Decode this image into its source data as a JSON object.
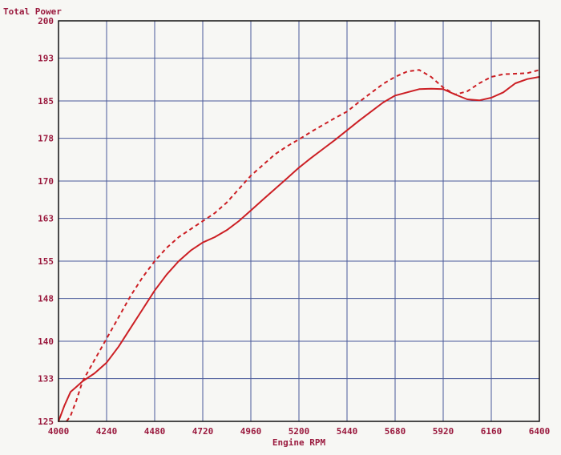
{
  "chart_data": {
    "type": "line",
    "title": "",
    "xlabel": "Engine RPM",
    "ylabel": "Total Power",
    "xlim": [
      4000,
      6400
    ],
    "ylim": [
      125,
      200
    ],
    "x_ticks": [
      4000,
      4240,
      4480,
      4720,
      4960,
      5200,
      5440,
      5680,
      5920,
      6160,
      6400
    ],
    "y_ticks": [
      125,
      133,
      140,
      148,
      155,
      163,
      170,
      178,
      185,
      193,
      200
    ],
    "x_tick_labels": [
      "4000",
      "4240",
      "4480",
      "4720",
      "4960",
      "5200",
      "5440",
      "5680",
      "5920",
      "6160",
      "6400"
    ],
    "y_tick_labels": [
      "125",
      "133",
      "140",
      "148",
      "155",
      "163",
      "170",
      "178",
      "185",
      "193",
      "200"
    ],
    "grid": true,
    "colors": {
      "line": "#cc1f24",
      "grid": "#4a5a9a",
      "text": "#9a1a3e",
      "frame": "#111111"
    },
    "series": [
      {
        "style": "solid",
        "x": [
          4000,
          4030,
          4060,
          4090,
          4120,
          4180,
          4240,
          4300,
          4360,
          4420,
          4480,
          4540,
          4600,
          4660,
          4720,
          4780,
          4840,
          4900,
          4960,
          5020,
          5080,
          5140,
          5200,
          5260,
          5320,
          5380,
          5440,
          5500,
          5560,
          5620,
          5680,
          5740,
          5800,
          5860,
          5920,
          5980,
          6040,
          6100,
          6160,
          6220,
          6280,
          6340,
          6400
        ],
        "values": [
          125,
          128,
          130.5,
          131.5,
          132.5,
          134,
          136,
          139,
          142.5,
          146,
          149.5,
          152.5,
          155,
          157,
          158.5,
          159.5,
          160.8,
          162.5,
          164.5,
          166.5,
          168.5,
          170.5,
          172.5,
          174.3,
          176,
          177.7,
          179.5,
          181.3,
          183,
          184.7,
          186,
          186.6,
          187.2,
          187.3,
          187.2,
          186.2,
          185.3,
          185.1,
          185.6,
          186.6,
          188.3,
          189.1,
          189.5
        ]
      },
      {
        "style": "dashed",
        "x": [
          4040,
          4060,
          4090,
          4120,
          4180,
          4240,
          4300,
          4360,
          4420,
          4480,
          4540,
          4600,
          4660,
          4720,
          4780,
          4840,
          4900,
          4960,
          5020,
          5080,
          5140,
          5200,
          5260,
          5320,
          5380,
          5440,
          5500,
          5560,
          5620,
          5680,
          5740,
          5800,
          5860,
          5920,
          5980,
          6040,
          6100,
          6160,
          6220,
          6280,
          6340,
          6400
        ],
        "values": [
          125,
          126,
          129,
          132.5,
          136.5,
          140.5,
          144.5,
          148.5,
          152,
          155,
          157.5,
          159.5,
          161,
          162.5,
          164,
          166,
          168.5,
          171,
          173,
          175,
          176.5,
          177.8,
          179.2,
          180.5,
          181.8,
          183,
          184.8,
          186.5,
          188.2,
          189.5,
          190.5,
          190.8,
          189.5,
          187.5,
          186.2,
          186.8,
          188.3,
          189.5,
          190,
          190.1,
          190.2,
          190.8
        ]
      }
    ]
  }
}
